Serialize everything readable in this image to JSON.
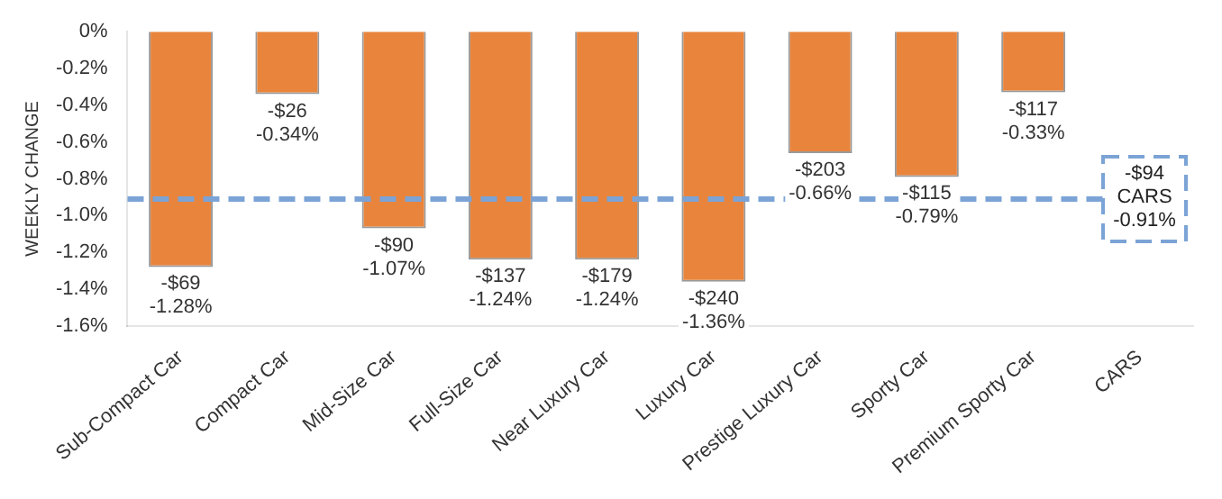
{
  "chart_data": {
    "type": "bar",
    "ylabel": "WEEKLY CHANGE",
    "categories": [
      "Sub-Compact Car",
      "Compact Car",
      "Mid-Size Car",
      "Full-Size Car",
      "Near Luxury Car",
      "Luxury Car",
      "Prestige Luxury Car",
      "Sporty Car",
      "Premium Sporty Car",
      "CARS"
    ],
    "values": [
      -1.28,
      -0.34,
      -1.07,
      -1.24,
      -1.24,
      -1.36,
      -0.66,
      -0.79,
      -0.33,
      null
    ],
    "value_labels": [
      "-$69\n-1.28%",
      "-$26\n-0.34%",
      "-$90\n-1.07%",
      "-$137\n-1.24%",
      "-$179\n-1.24%",
      "-$240\n-1.36%",
      "-$203\n-0.66%",
      "-$115\n-0.79%",
      "-$117\n-0.33%",
      null
    ],
    "color": "#e9843c",
    "ylim": [
      -1.6,
      0
    ],
    "yticks": [
      {
        "value": 0,
        "label": "0%"
      },
      {
        "value": -0.2,
        "label": "-0.2%"
      },
      {
        "value": -0.4,
        "label": "-0.4%"
      },
      {
        "value": -0.6,
        "label": "-0.6%"
      },
      {
        "value": -0.8,
        "label": "-0.8%"
      },
      {
        "value": -1.0,
        "label": "-1.0%"
      },
      {
        "value": -1.2,
        "label": "-1.2%"
      },
      {
        "value": -1.4,
        "label": "-1.4%"
      },
      {
        "value": -1.6,
        "label": "-1.6%"
      }
    ],
    "ref_lines": [
      {
        "axis": "y",
        "value": -0.91,
        "label": "-$94\nCARS\n-0.91%",
        "color": "#7ba3d6",
        "line_style": "dashed"
      }
    ],
    "grid": false,
    "legend": false
  }
}
